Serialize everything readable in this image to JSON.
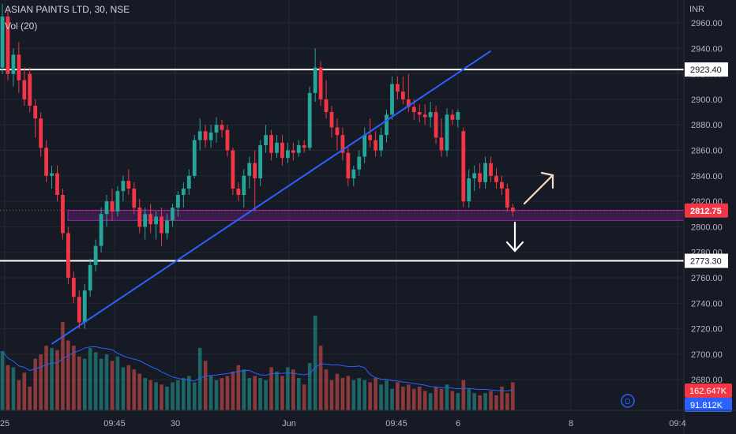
{
  "header": {
    "symbol_line": "ASIAN PAINTS LTD, 30, NSE",
    "volume_label": "Vol (20)",
    "currency": "INR"
  },
  "chart_data": {
    "type": "candlestick",
    "title": "ASIAN PAINTS LTD, 30, NSE",
    "ylim": [
      2660,
      2965
    ],
    "y_ticks": [
      2680,
      2700,
      2720,
      2740,
      2760,
      2780,
      2800,
      2820,
      2840,
      2860,
      2880,
      2900,
      2920,
      2940,
      2960
    ],
    "x_tick_labels": [
      "25",
      "09:45",
      "30",
      "Jun",
      "09:45",
      "6",
      "8",
      "09:4"
    ],
    "horizontal_levels": [
      {
        "value": 2923.4,
        "label": "2923.40",
        "color": "#ffffff"
      },
      {
        "value": 2773.3,
        "label": "2773.30",
        "color": "#ffffff"
      }
    ],
    "last_price": {
      "value": 2812.75,
      "label": "2812.75",
      "color": "#f23645"
    },
    "support_zone": [
      2805,
      2813
    ],
    "trendline": {
      "from": {
        "bar": 9,
        "price": 2708
      },
      "to": {
        "bar": 89,
        "price": 2938
      },
      "color": "#2962ff"
    },
    "volume": {
      "current": "162.647K",
      "ma": "91.812K",
      "up_color": "#26a69a",
      "down_color": "#ef5350",
      "ma_color": "#2962ff"
    },
    "colors": {
      "up": "#26a69a",
      "down": "#f23645",
      "background": "#161a25",
      "grid": "#242833"
    },
    "ohlc": [
      [
        2925,
        2975,
        2920,
        2965
      ],
      [
        2965,
        2970,
        2915,
        2920
      ],
      [
        2920,
        2940,
        2910,
        2935
      ],
      [
        2935,
        2945,
        2905,
        2915
      ],
      [
        2915,
        2925,
        2895,
        2900
      ],
      [
        2920,
        2925,
        2890,
        2895
      ],
      [
        2895,
        2900,
        2870,
        2885
      ],
      [
        2885,
        2890,
        2855,
        2862
      ],
      [
        2862,
        2868,
        2835,
        2840
      ],
      [
        2840,
        2848,
        2830,
        2842
      ],
      [
        2842,
        2848,
        2820,
        2825
      ],
      [
        2825,
        2830,
        2790,
        2795
      ],
      [
        2795,
        2800,
        2755,
        2760
      ],
      [
        2760,
        2765,
        2740,
        2745
      ],
      [
        2745,
        2750,
        2720,
        2725
      ],
      [
        2725,
        2755,
        2720,
        2750
      ],
      [
        2750,
        2775,
        2745,
        2770
      ],
      [
        2770,
        2790,
        2765,
        2785
      ],
      [
        2785,
        2815,
        2780,
        2810
      ],
      [
        2810,
        2825,
        2800,
        2820
      ],
      [
        2820,
        2830,
        2805,
        2812
      ],
      [
        2812,
        2832,
        2808,
        2828
      ],
      [
        2828,
        2840,
        2820,
        2836
      ],
      [
        2836,
        2845,
        2825,
        2830
      ],
      [
        2830,
        2835,
        2810,
        2815
      ],
      [
        2815,
        2822,
        2795,
        2800
      ],
      [
        2800,
        2815,
        2790,
        2810
      ],
      [
        2810,
        2818,
        2795,
        2802
      ],
      [
        2802,
        2812,
        2790,
        2808
      ],
      [
        2808,
        2815,
        2785,
        2795
      ],
      [
        2795,
        2810,
        2790,
        2805
      ],
      [
        2805,
        2818,
        2800,
        2815
      ],
      [
        2815,
        2828,
        2808,
        2825
      ],
      [
        2825,
        2835,
        2815,
        2830
      ],
      [
        2830,
        2845,
        2825,
        2840
      ],
      [
        2840,
        2872,
        2838,
        2868
      ],
      [
        2868,
        2885,
        2860,
        2875
      ],
      [
        2875,
        2880,
        2862,
        2868
      ],
      [
        2868,
        2880,
        2862,
        2874
      ],
      [
        2874,
        2886,
        2866,
        2880
      ],
      [
        2880,
        2884,
        2870,
        2876
      ],
      [
        2876,
        2880,
        2855,
        2860
      ],
      [
        2860,
        2862,
        2825,
        2830
      ],
      [
        2830,
        2835,
        2820,
        2825
      ],
      [
        2825,
        2845,
        2815,
        2840
      ],
      [
        2840,
        2855,
        2830,
        2850
      ],
      [
        2850,
        2860,
        2812,
        2838
      ],
      [
        2838,
        2868,
        2832,
        2864
      ],
      [
        2864,
        2880,
        2858,
        2872
      ],
      [
        2872,
        2876,
        2852,
        2858
      ],
      [
        2858,
        2872,
        2854,
        2866
      ],
      [
        2866,
        2872,
        2848,
        2854
      ],
      [
        2854,
        2866,
        2850,
        2860
      ],
      [
        2860,
        2866,
        2852,
        2858
      ],
      [
        2858,
        2868,
        2855,
        2864
      ],
      [
        2864,
        2868,
        2858,
        2862
      ],
      [
        2862,
        2910,
        2860,
        2905
      ],
      [
        2905,
        2940,
        2898,
        2925
      ],
      [
        2925,
        2930,
        2895,
        2900
      ],
      [
        2900,
        2915,
        2885,
        2890
      ],
      [
        2890,
        2895,
        2870,
        2878
      ],
      [
        2878,
        2885,
        2860,
        2872
      ],
      [
        2872,
        2878,
        2852,
        2858
      ],
      [
        2858,
        2862,
        2832,
        2838
      ],
      [
        2838,
        2848,
        2832,
        2845
      ],
      [
        2845,
        2860,
        2840,
        2855
      ],
      [
        2855,
        2878,
        2850,
        2872
      ],
      [
        2872,
        2885,
        2862,
        2868
      ],
      [
        2868,
        2875,
        2855,
        2860
      ],
      [
        2860,
        2878,
        2855,
        2872
      ],
      [
        2872,
        2892,
        2866,
        2888
      ],
      [
        2888,
        2918,
        2884,
        2912
      ],
      [
        2912,
        2918,
        2900,
        2906
      ],
      [
        2906,
        2918,
        2896,
        2900
      ],
      [
        2900,
        2920,
        2890,
        2894
      ],
      [
        2894,
        2900,
        2884,
        2890
      ],
      [
        2890,
        2896,
        2882,
        2888
      ],
      [
        2888,
        2896,
        2880,
        2886
      ],
      [
        2886,
        2898,
        2878,
        2890
      ],
      [
        2890,
        2895,
        2865,
        2870
      ],
      [
        2870,
        2885,
        2855,
        2860
      ],
      [
        2860,
        2893,
        2855,
        2888
      ],
      [
        2888,
        2892,
        2880,
        2884
      ],
      [
        2884,
        2892,
        2878,
        2890
      ],
      [
        2875,
        2878,
        2815,
        2820
      ],
      [
        2820,
        2845,
        2815,
        2838
      ],
      [
        2838,
        2848,
        2828,
        2842
      ],
      [
        2842,
        2850,
        2830,
        2835
      ],
      [
        2835,
        2855,
        2830,
        2850
      ],
      [
        2850,
        2855,
        2835,
        2840
      ],
      [
        2840,
        2846,
        2830,
        2835
      ],
      [
        2835,
        2840,
        2825,
        2830
      ],
      [
        2830,
        2834,
        2812,
        2815
      ],
      [
        2815,
        2818,
        2808,
        2812
      ]
    ],
    "volumes": [
      55,
      42,
      40,
      28,
      35,
      22,
      48,
      52,
      60,
      58,
      56,
      82,
      65,
      60,
      50,
      48,
      58,
      54,
      48,
      52,
      46,
      50,
      40,
      42,
      38,
      34,
      30,
      28,
      26,
      24,
      22,
      26,
      28,
      30,
      32,
      26,
      58,
      46,
      32,
      28,
      30,
      32,
      36,
      42,
      38,
      30,
      32,
      30,
      28,
      40,
      36,
      32,
      40,
      38,
      30,
      24,
      44,
      88,
      60,
      38,
      28,
      34,
      30,
      32,
      28,
      30,
      28,
      26,
      30,
      24,
      28,
      20,
      26,
      22,
      24,
      20,
      22,
      18,
      16,
      22,
      20,
      24,
      18,
      16,
      28,
      20,
      16,
      14,
      16,
      18,
      14,
      22,
      16,
      26
    ]
  }
}
